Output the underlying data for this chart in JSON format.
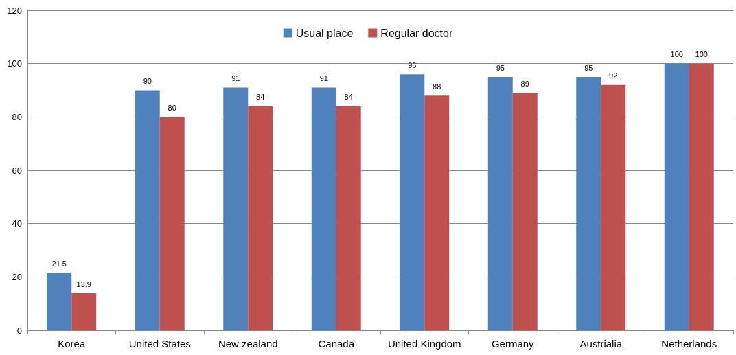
{
  "chart_data": {
    "type": "bar",
    "categories": [
      "Korea",
      "United States",
      "New zealand",
      "Canada",
      "United Kingdom",
      "Germany",
      "Austrialia",
      "Netherlands"
    ],
    "series": [
      {
        "name": "Usual place",
        "color": "#4f81bd",
        "values": [
          21.5,
          90,
          91,
          91,
          96,
          95,
          95,
          100
        ]
      },
      {
        "name": "Regular doctor",
        "color": "#c0504d",
        "values": [
          13.9,
          80,
          84,
          84,
          88,
          89,
          92,
          100
        ]
      }
    ],
    "ylim": [
      0,
      120
    ],
    "yticks": [
      0,
      20,
      40,
      60,
      80,
      100,
      120
    ],
    "grid": "y",
    "legend": "top",
    "data_labels": true
  }
}
